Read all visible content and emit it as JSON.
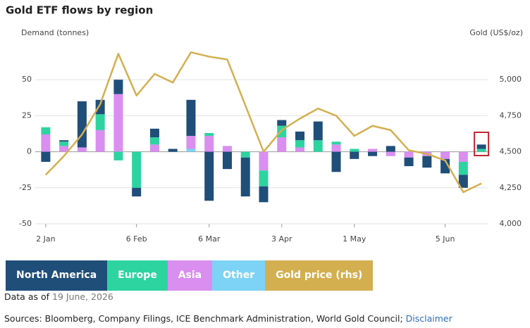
{
  "chart_data": {
    "type": "bar",
    "title": "Gold ETF flows by region",
    "y_label": "Demand (tonnes)",
    "y2_label": "Gold (US$/oz)",
    "categories": [
      "2 Jan",
      null,
      null,
      null,
      null,
      "6 Feb",
      null,
      null,
      null,
      "6 Mar",
      null,
      null,
      null,
      "3 Apr",
      null,
      null,
      null,
      "1 May",
      null,
      null,
      null,
      null,
      "5 Jun",
      null,
      null
    ],
    "series": [
      {
        "name": "North America",
        "color": "#1f4e79",
        "values": [
          -7,
          1,
          32,
          10,
          10,
          -6,
          6,
          2,
          25,
          -34,
          -12,
          -27,
          -11,
          4,
          6,
          13,
          -14,
          -5,
          -3,
          4,
          -6,
          -8,
          -10,
          -9,
          3
        ]
      },
      {
        "name": "Europe",
        "color": "#2dd4a0",
        "values": [
          5,
          3,
          0,
          11,
          -6,
          -25,
          5,
          0,
          0,
          2,
          0,
          -4,
          -11,
          8,
          5,
          8,
          2,
          2,
          0,
          0,
          0,
          0,
          0,
          -9,
          2
        ]
      },
      {
        "name": "Asia",
        "color": "#d98ef0",
        "values": [
          12,
          4,
          3,
          15,
          40,
          0,
          5,
          0,
          9,
          11,
          4,
          0,
          -13,
          10,
          3,
          0,
          5,
          0,
          2,
          -3,
          -4,
          -3,
          -5,
          -7,
          0
        ]
      },
      {
        "name": "Other",
        "color": "#7dd3f5",
        "values": [
          0,
          0,
          0,
          0,
          0,
          0,
          0,
          0,
          2,
          0,
          0,
          0,
          0,
          0,
          0,
          0,
          0,
          0,
          0,
          0,
          0,
          0,
          0,
          0,
          0
        ]
      },
      {
        "name": "Gold price (rhs)",
        "color": "#d4af50",
        "axis": "y2",
        "values": [
          4340,
          4470,
          4620,
          4830,
          5180,
          4890,
          5040,
          4980,
          5190,
          5160,
          5140,
          4820,
          4500,
          4650,
          4730,
          4800,
          4750,
          4610,
          4680,
          4650,
          4510,
          4485,
          4440,
          4220,
          4280
        ]
      }
    ],
    "ylim": [
      -50,
      75
    ],
    "yticks": [
      -50,
      -25,
      0,
      25,
      50
    ],
    "y2lim": [
      4000,
      5250
    ],
    "y2ticks": [
      {
        "value": 4000,
        "label": "4,000"
      },
      {
        "value": 4250,
        "label": "4,250"
      },
      {
        "value": 4500,
        "label": "4,500"
      },
      {
        "value": 4750,
        "label": "4,750"
      },
      {
        "value": 5000,
        "label": "5,000"
      }
    ],
    "grid": true,
    "data_as_of_label": "Data as of",
    "data_as_of": "19 June, 2026",
    "sources": "Sources: Bloomberg, Company Filings, ICE Benchmark Administration, World Gold Council;",
    "disclaimer": "Disclaimer"
  }
}
